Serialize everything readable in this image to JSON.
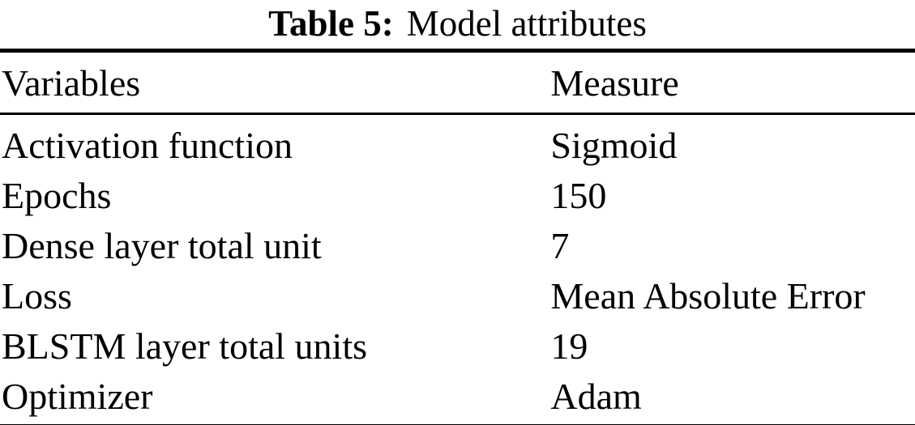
{
  "caption": {
    "label": "Table 5:",
    "text": "Model attributes"
  },
  "table": {
    "headers": [
      "Variables",
      "Measure"
    ],
    "rows": [
      [
        "Activation function",
        "Sigmoid"
      ],
      [
        "Epochs",
        "150"
      ],
      [
        "Dense layer total unit",
        "7"
      ],
      [
        "Loss",
        "Mean Absolute Error"
      ],
      [
        "BLSTM layer total units",
        "19"
      ],
      [
        "Optimizer",
        "Adam"
      ]
    ]
  }
}
